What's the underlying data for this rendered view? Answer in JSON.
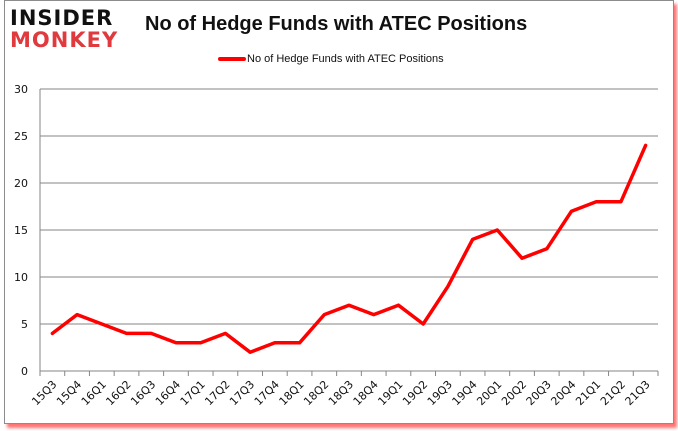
{
  "logo": {
    "line1": "INSIDER",
    "line2": "MONKEY"
  },
  "chart_data": {
    "type": "line",
    "title": "No of Hedge Funds with ATEC Positions",
    "xlabel": "",
    "ylabel": "",
    "ylim": [
      0,
      30
    ],
    "yticks": [
      0,
      5,
      10,
      15,
      20,
      25,
      30
    ],
    "grid": true,
    "legend_position": "top",
    "categories": [
      "15Q3",
      "15Q4",
      "16Q1",
      "16Q2",
      "16Q3",
      "16Q4",
      "17Q1",
      "17Q2",
      "17Q3",
      "17Q4",
      "18Q1",
      "18Q2",
      "18Q3",
      "18Q4",
      "19Q1",
      "19Q2",
      "19Q3",
      "19Q4",
      "20Q1",
      "20Q2",
      "20Q3",
      "20Q4",
      "21Q1",
      "21Q2",
      "21Q3"
    ],
    "series": [
      {
        "name": "No of Hedge Funds with ATEC Positions",
        "color": "#ff0000",
        "values": [
          4,
          6,
          5,
          4,
          4,
          3,
          3,
          4,
          2,
          3,
          3,
          6,
          7,
          6,
          7,
          5,
          9,
          14,
          15,
          12,
          13,
          17,
          18,
          18,
          24
        ]
      }
    ]
  }
}
